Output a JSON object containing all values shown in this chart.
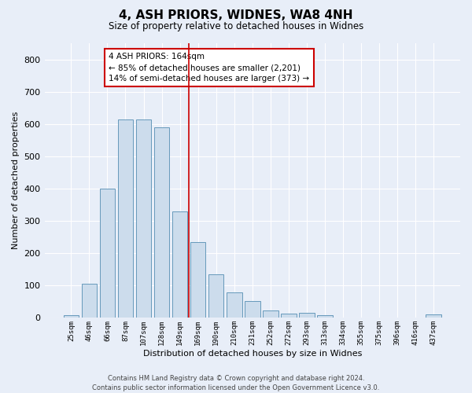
{
  "title": "4, ASH PRIORS, WIDNES, WA8 4NH",
  "subtitle": "Size of property relative to detached houses in Widnes",
  "xlabel": "Distribution of detached houses by size in Widnes",
  "ylabel": "Number of detached properties",
  "bar_labels": [
    "25sqm",
    "46sqm",
    "66sqm",
    "87sqm",
    "107sqm",
    "128sqm",
    "149sqm",
    "169sqm",
    "190sqm",
    "210sqm",
    "231sqm",
    "252sqm",
    "272sqm",
    "293sqm",
    "313sqm",
    "334sqm",
    "355sqm",
    "375sqm",
    "396sqm",
    "416sqm",
    "437sqm"
  ],
  "bar_values": [
    8,
    105,
    400,
    615,
    615,
    590,
    330,
    235,
    135,
    78,
    52,
    22,
    13,
    15,
    8,
    0,
    0,
    0,
    0,
    0,
    10
  ],
  "bar_color": "#ccdcec",
  "bar_edgecolor": "#6699bb",
  "ylim": [
    0,
    850
  ],
  "yticks": [
    0,
    100,
    200,
    300,
    400,
    500,
    600,
    700,
    800
  ],
  "annotation_title": "4 ASH PRIORS: 164sqm",
  "annotation_line1": "← 85% of detached houses are smaller (2,201)",
  "annotation_line2": "14% of semi-detached houses are larger (373) →",
  "red_line_x": 6.5,
  "footer_line1": "Contains HM Land Registry data © Crown copyright and database right 2024.",
  "footer_line2": "Contains public sector information licensed under the Open Government Licence v3.0.",
  "background_color": "#e8eef8",
  "plot_bg_color": "#e8eef8",
  "grid_color": "#ffffff",
  "annotation_box_color": "#ffffff",
  "annotation_box_edgecolor": "#cc0000"
}
